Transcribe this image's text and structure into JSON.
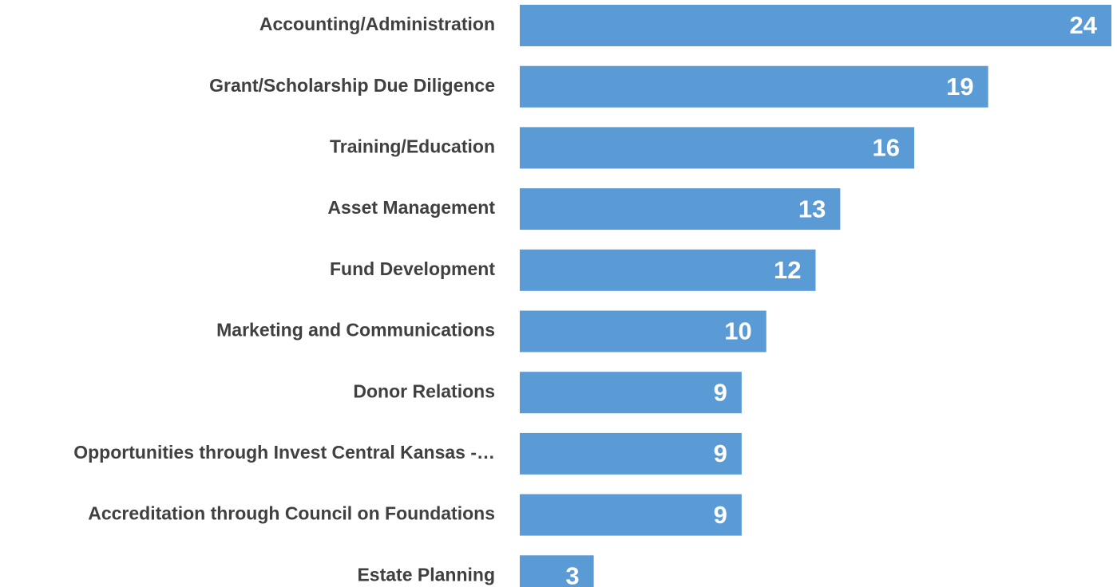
{
  "chart_data": {
    "type": "bar",
    "orientation": "horizontal",
    "color": "#5b9bd5",
    "categories": [
      "Accounting/Administration",
      "Grant/Scholarship Due Diligence",
      "Training/Education",
      "Asset Management",
      "Fund Development",
      "Marketing and Communications",
      "Donor Relations",
      "Opportunities through Invest Central Kansas -…",
      "Accreditation through Council on Foundations",
      "Estate Planning"
    ],
    "values": [
      24,
      19,
      16,
      13,
      12,
      10,
      9,
      9,
      9,
      3
    ]
  }
}
